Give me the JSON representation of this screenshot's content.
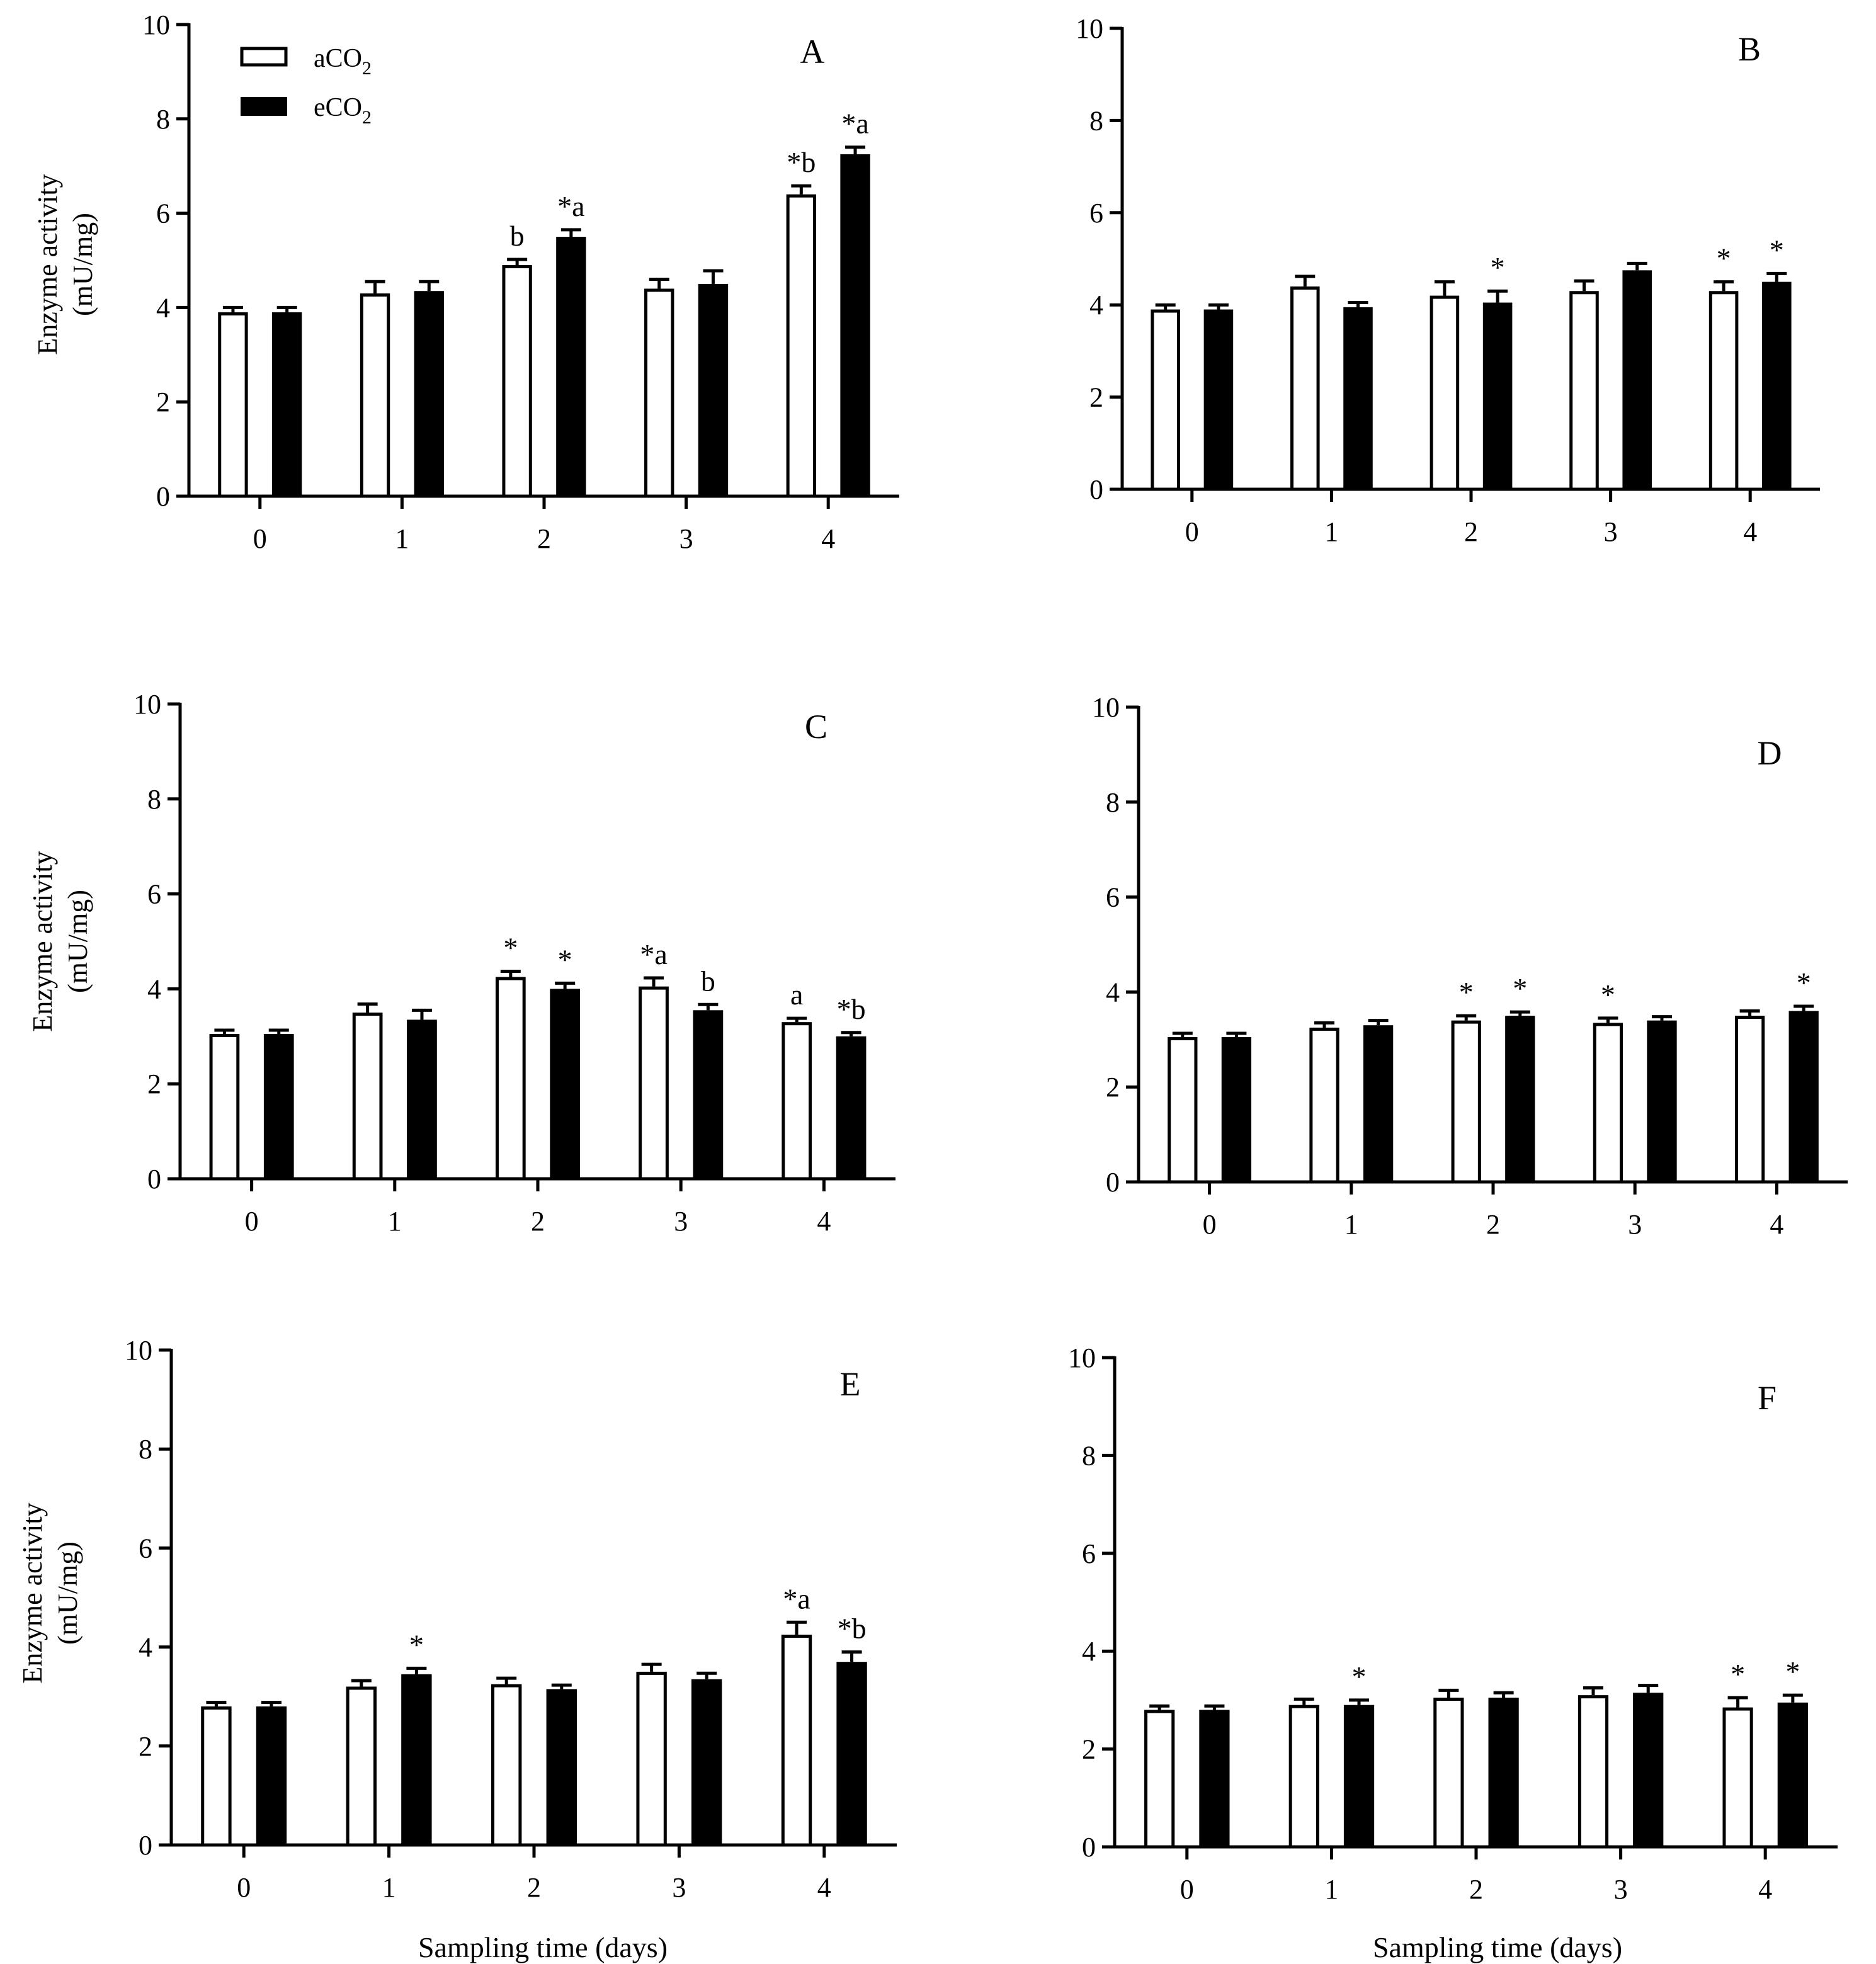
{
  "legend": {
    "items": [
      {
        "label": "aCO",
        "sub": "2",
        "fill": "#ffffff"
      },
      {
        "label": "eCO",
        "sub": "2",
        "fill": "#000000"
      }
    ]
  },
  "ylabel_line1": "Enzyme activity",
  "ylabel_line2": "(mU/mg)",
  "xlabel": "Sampling time (days)",
  "chart_data": [
    {
      "type": "bar",
      "panel": "A",
      "categories": [
        "0",
        "1",
        "2",
        "3",
        "4"
      ],
      "ylim": [
        0,
        10
      ],
      "yticks": [
        "0",
        "2",
        "4",
        "6",
        "8",
        "10"
      ],
      "ylabel": "Enzyme activity (mU/mg)",
      "xlabel": "",
      "series": [
        {
          "name": "aCO2",
          "values": [
            3.9,
            4.3,
            4.9,
            4.4,
            6.4
          ],
          "errors": [
            0.1,
            0.25,
            0.12,
            0.2,
            0.18
          ],
          "labels": [
            "",
            "",
            "b",
            "",
            "*b"
          ]
        },
        {
          "name": "eCO2",
          "values": [
            3.9,
            4.35,
            5.5,
            4.5,
            7.25
          ],
          "errors": [
            0.1,
            0.2,
            0.15,
            0.28,
            0.15
          ],
          "labels": [
            "",
            "",
            "*a",
            "",
            "*a"
          ]
        }
      ]
    },
    {
      "type": "bar",
      "panel": "B",
      "categories": [
        "0",
        "1",
        "2",
        "3",
        "4"
      ],
      "ylim": [
        0,
        10
      ],
      "yticks": [
        "0",
        "2",
        "4",
        "6",
        "8",
        "10"
      ],
      "ylabel": "",
      "xlabel": "",
      "series": [
        {
          "name": "aCO2",
          "values": [
            3.9,
            4.4,
            4.2,
            4.3,
            4.3
          ],
          "errors": [
            0.1,
            0.22,
            0.3,
            0.22,
            0.2
          ],
          "labels": [
            "",
            "",
            "",
            "",
            "*"
          ]
        },
        {
          "name": "eCO2",
          "values": [
            3.9,
            3.95,
            4.05,
            4.75,
            4.5
          ],
          "errors": [
            0.1,
            0.1,
            0.25,
            0.15,
            0.18
          ],
          "labels": [
            "",
            "",
            "*",
            "",
            "*"
          ]
        }
      ]
    },
    {
      "type": "bar",
      "panel": "C",
      "categories": [
        "0",
        "1",
        "2",
        "3",
        "4"
      ],
      "ylim": [
        0,
        10
      ],
      "yticks": [
        "0",
        "2",
        "4",
        "6",
        "8",
        "10"
      ],
      "ylabel": "Enzyme activity (mU/mg)",
      "xlabel": "",
      "series": [
        {
          "name": "aCO2",
          "values": [
            3.05,
            3.5,
            4.25,
            4.05,
            3.3
          ],
          "errors": [
            0.08,
            0.18,
            0.12,
            0.18,
            0.08
          ],
          "labels": [
            "",
            "",
            "*",
            "*a",
            "a"
          ]
        },
        {
          "name": "eCO2",
          "values": [
            3.05,
            3.35,
            4.0,
            3.55,
            3.0
          ],
          "errors": [
            0.08,
            0.2,
            0.12,
            0.12,
            0.08
          ],
          "labels": [
            "",
            "",
            "*",
            "b",
            "*b"
          ]
        }
      ]
    },
    {
      "type": "bar",
      "panel": "D",
      "categories": [
        "0",
        "1",
        "2",
        "3",
        "4"
      ],
      "ylim": [
        0,
        10
      ],
      "yticks": [
        "0",
        "2",
        "4",
        "6",
        "8",
        "10"
      ],
      "ylabel": "",
      "xlabel": "",
      "series": [
        {
          "name": "aCO2",
          "values": [
            3.05,
            3.25,
            3.4,
            3.35,
            3.5
          ],
          "errors": [
            0.08,
            0.1,
            0.1,
            0.1,
            0.1
          ],
          "labels": [
            "",
            "",
            "*",
            "*",
            ""
          ]
        },
        {
          "name": "eCO2",
          "values": [
            3.05,
            3.3,
            3.5,
            3.4,
            3.6
          ],
          "errors": [
            0.08,
            0.1,
            0.08,
            0.08,
            0.1
          ],
          "labels": [
            "",
            "",
            "*",
            "",
            "*"
          ]
        }
      ]
    },
    {
      "type": "bar",
      "panel": "E",
      "categories": [
        "0",
        "1",
        "2",
        "3",
        "4"
      ],
      "ylim": [
        0,
        10
      ],
      "yticks": [
        "0",
        "2",
        "4",
        "6",
        "8",
        "10"
      ],
      "ylabel": "Enzyme activity (mU/mg)",
      "xlabel": "Sampling time (days)",
      "series": [
        {
          "name": "aCO2",
          "values": [
            2.8,
            3.2,
            3.25,
            3.5,
            4.25
          ],
          "errors": [
            0.08,
            0.12,
            0.12,
            0.15,
            0.25
          ],
          "labels": [
            "",
            "",
            "",
            "",
            "*a"
          ]
        },
        {
          "name": "eCO2",
          "values": [
            2.8,
            3.45,
            3.15,
            3.35,
            3.7
          ],
          "errors": [
            0.08,
            0.12,
            0.08,
            0.12,
            0.2
          ],
          "labels": [
            "",
            "*",
            "",
            "",
            "*b"
          ]
        }
      ]
    },
    {
      "type": "bar",
      "panel": "F",
      "categories": [
        "0",
        "1",
        "2",
        "3",
        "4"
      ],
      "ylim": [
        0,
        10
      ],
      "yticks": [
        "0",
        "2",
        "4",
        "6",
        "8",
        "10"
      ],
      "ylabel": "",
      "xlabel": "Sampling time (days)",
      "series": [
        {
          "name": "aCO2",
          "values": [
            2.8,
            2.9,
            3.05,
            3.1,
            2.85
          ],
          "errors": [
            0.08,
            0.12,
            0.15,
            0.15,
            0.2
          ],
          "labels": [
            "",
            "",
            "",
            "",
            "*"
          ]
        },
        {
          "name": "eCO2",
          "values": [
            2.8,
            2.9,
            3.05,
            3.15,
            2.95
          ],
          "errors": [
            0.08,
            0.1,
            0.1,
            0.15,
            0.15
          ],
          "labels": [
            "",
            "*",
            "",
            "",
            "*"
          ]
        }
      ]
    }
  ]
}
